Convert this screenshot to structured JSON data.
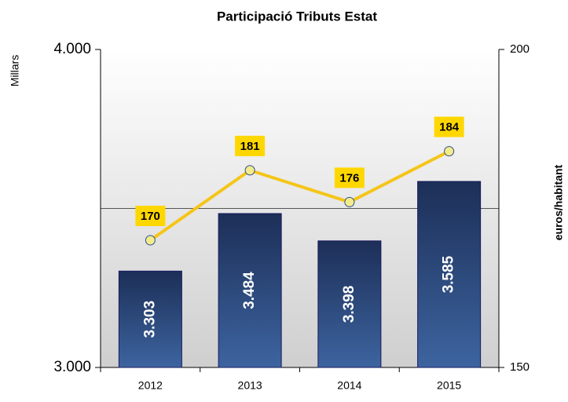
{
  "chart_data": {
    "type": "bar-line",
    "title": "Participació Tributs Estat",
    "y_label": "Millars",
    "y2_label": "euros/habitant",
    "categories": [
      "2012",
      "2013",
      "2014",
      "2015"
    ],
    "series": [
      {
        "type": "bar",
        "color": "#1f3864",
        "values": [
          3303,
          3484,
          3398,
          3585
        ],
        "value_labels": [
          "3.303",
          "3.484",
          "3.398",
          "3.585"
        ]
      },
      {
        "type": "line",
        "axis": "y2",
        "color": "#f5c518",
        "values": [
          170,
          181,
          176,
          184
        ]
      }
    ],
    "ylim": [
      3000,
      4000
    ],
    "yticks": [
      {
        "value": 3000,
        "label": "3.000"
      },
      {
        "value": 4000,
        "label": "4.000"
      }
    ],
    "ygrid": [
      3500
    ],
    "y2lim": [
      150,
      200
    ],
    "y2ticks": [
      150,
      200
    ]
  }
}
